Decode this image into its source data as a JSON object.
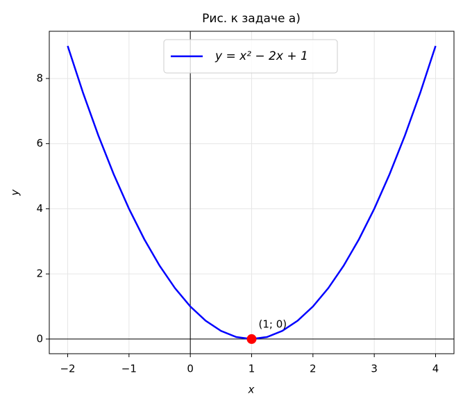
{
  "chart_data": {
    "type": "line",
    "title": "Рис. к задаче а)",
    "xlabel": "x",
    "ylabel": "y",
    "series": [
      {
        "name": "y = x² − 2x + 1",
        "color": "#0000ff",
        "x": [
          -2,
          -1.75,
          -1.5,
          -1.25,
          -1,
          -0.75,
          -0.5,
          -0.25,
          0,
          0.25,
          0.5,
          0.75,
          1,
          1.25,
          1.5,
          1.75,
          2,
          2.25,
          2.5,
          2.75,
          3,
          3.25,
          3.5,
          3.75,
          4
        ],
        "values": [
          9,
          7.5625,
          6.25,
          5.0625,
          4,
          3.0625,
          2.25,
          1.5625,
          1,
          0.5625,
          0.25,
          0.0625,
          0,
          0.0625,
          0.25,
          0.5625,
          1,
          1.5625,
          2.25,
          3.0625,
          4,
          5.0625,
          6.25,
          7.5625,
          9
        ]
      }
    ],
    "markers": [
      {
        "x": 1,
        "y": 0,
        "color": "#ff0000",
        "label": "(1; 0)"
      }
    ],
    "xlim": [
      -2.3,
      4.3
    ],
    "ylim": [
      -0.45,
      9.45
    ],
    "xticks": [
      {
        "value": -2,
        "label": "−2"
      },
      {
        "value": -1,
        "label": "−1"
      },
      0,
      1,
      2,
      3,
      4
    ],
    "yticks": [
      0,
      2,
      4,
      6,
      8
    ],
    "grid": true,
    "zero_lines": true,
    "legend": "upper center"
  }
}
